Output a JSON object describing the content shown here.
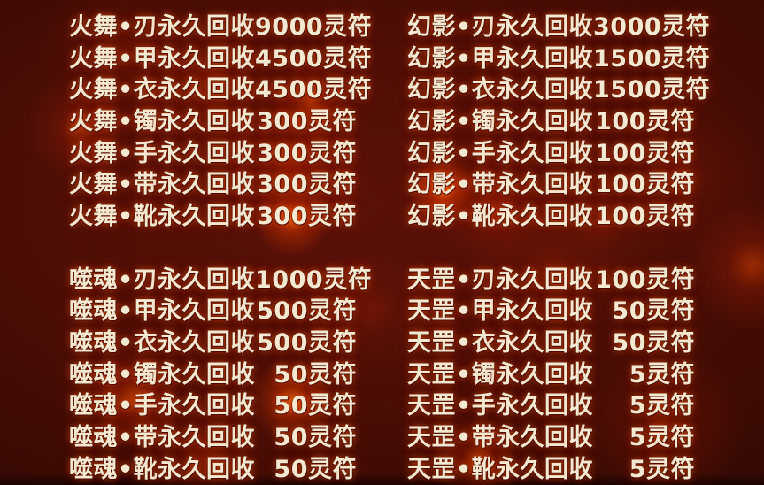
{
  "theme": {
    "background_base": "#4a0e06",
    "background_dark": "#200504",
    "ember_glow": "#ff6e0a",
    "text_color": "#f3e8d0",
    "text_outline": "#4a0800"
  },
  "currency_suffix": "灵符",
  "action_label": "永久回收",
  "groups": [
    {
      "rows": [
        {
          "left_name": "火舞•刃",
          "left_action": "永久回收",
          "left_price": "9000灵符",
          "right_name": "幻影•刃",
          "right_action": "永久回收",
          "right_price": "3000灵符"
        },
        {
          "left_name": "火舞•甲",
          "left_action": "永久回收",
          "left_price": "4500灵符",
          "right_name": "幻影•甲",
          "right_action": "永久回收",
          "right_price": "1500灵符"
        },
        {
          "left_name": "火舞•衣",
          "left_action": "永久回收",
          "left_price": "4500灵符",
          "right_name": "幻影•衣",
          "right_action": "永久回收",
          "right_price": "1500灵符"
        },
        {
          "left_name": "火舞•镯",
          "left_action": "永久回收",
          "left_price": "300灵符",
          "right_name": "幻影•镯",
          "right_action": "永久回收",
          "right_price": "100灵符"
        },
        {
          "left_name": "火舞•手",
          "left_action": "永久回收",
          "left_price": "300灵符",
          "right_name": "幻影•手",
          "right_action": "永久回收",
          "right_price": "100灵符"
        },
        {
          "left_name": "火舞•带",
          "left_action": "永久回收",
          "left_price": "300灵符",
          "right_name": "幻影•带",
          "right_action": "永久回收",
          "right_price": "100灵符"
        },
        {
          "left_name": "火舞•靴",
          "left_action": "永久回收",
          "left_price": "300灵符",
          "right_name": "幻影•靴",
          "right_action": "永久回收",
          "right_price": "100灵符"
        }
      ]
    },
    {
      "rows": [
        {
          "left_name": "噬魂•刃",
          "left_action": "永久回收",
          "left_price": "1000灵符",
          "right_name": "天罡•刃",
          "right_action": "永久回收",
          "right_price": "100灵符"
        },
        {
          "left_name": "噬魂•甲",
          "left_action": "永久回收",
          "left_price": "500灵符",
          "right_name": "天罡•甲",
          "right_action": "永久回收",
          "right_price": "50灵符"
        },
        {
          "left_name": "噬魂•衣",
          "left_action": "永久回收",
          "left_price": "500灵符",
          "right_name": "天罡•衣",
          "right_action": "永久回收",
          "right_price": "50灵符"
        },
        {
          "left_name": "噬魂•镯",
          "left_action": "永久回收",
          "left_price": "50灵符",
          "right_name": "天罡•镯",
          "right_action": "永久回收",
          "right_price": "5灵符"
        },
        {
          "left_name": "噬魂•手",
          "left_action": "永久回收",
          "left_price": "50灵符",
          "right_name": "天罡•手",
          "right_action": "永久回收",
          "right_price": "5灵符"
        },
        {
          "left_name": "噬魂•带",
          "left_action": "永久回收",
          "left_price": "50灵符",
          "right_name": "天罡•带",
          "right_action": "永久回收",
          "right_price": "5灵符"
        },
        {
          "left_name": "噬魂•靴",
          "left_action": "永久回收",
          "left_price": "50灵符",
          "right_name": "天罡•靴",
          "right_action": "永久回收",
          "right_price": "5灵符"
        }
      ]
    }
  ]
}
